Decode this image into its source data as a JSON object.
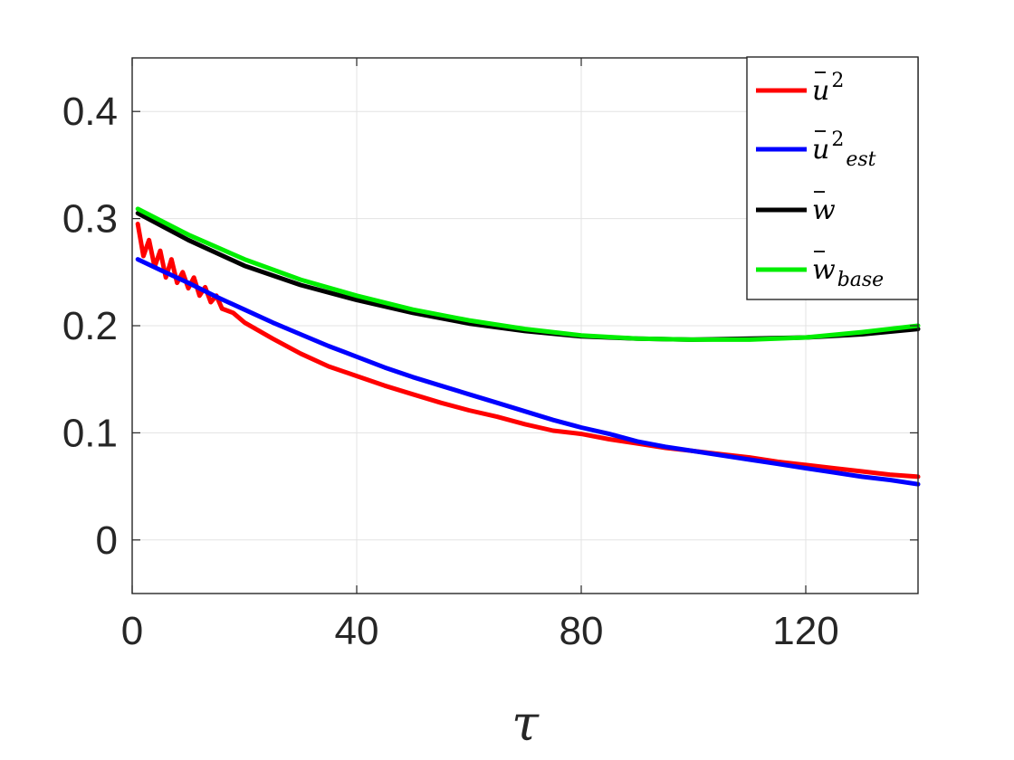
{
  "chart_data": {
    "type": "line",
    "xlabel": "τ",
    "ylabel": "",
    "title": "",
    "xlim": [
      0,
      140
    ],
    "ylim": [
      -0.05,
      0.45
    ],
    "xticks": [
      0,
      40,
      80,
      120
    ],
    "yticks": [
      0,
      0.1,
      0.2,
      0.3,
      0.4
    ],
    "xtick_labels": [
      "0",
      "40",
      "80",
      "120"
    ],
    "ytick_labels": [
      "0",
      "0.1",
      "0.2",
      "0.3",
      "0.4"
    ],
    "grid": true,
    "legend_position": "top-right",
    "series": [
      {
        "name": "u²",
        "legend_main": "u",
        "legend_sup": "2",
        "legend_sub": "",
        "legend_bar": true,
        "color": "#ff0000",
        "x": [
          1,
          2,
          3,
          4,
          5,
          6,
          7,
          8,
          9,
          10,
          11,
          12,
          13,
          14,
          15,
          16,
          18,
          20,
          25,
          30,
          35,
          40,
          45,
          50,
          55,
          60,
          65,
          70,
          75,
          80,
          85,
          90,
          95,
          100,
          105,
          110,
          115,
          120,
          125,
          130,
          135,
          140
        ],
        "y": [
          0.295,
          0.265,
          0.28,
          0.255,
          0.27,
          0.245,
          0.262,
          0.24,
          0.25,
          0.235,
          0.245,
          0.228,
          0.236,
          0.222,
          0.228,
          0.216,
          0.212,
          0.203,
          0.188,
          0.174,
          0.162,
          0.153,
          0.144,
          0.136,
          0.128,
          0.121,
          0.115,
          0.108,
          0.102,
          0.099,
          0.094,
          0.09,
          0.086,
          0.083,
          0.08,
          0.077,
          0.073,
          0.07,
          0.067,
          0.064,
          0.061,
          0.059
        ]
      },
      {
        "name": "u²est",
        "legend_main": "u",
        "legend_sup": "2",
        "legend_sub": "est",
        "legend_bar": true,
        "color": "#0000ff",
        "x": [
          1,
          5,
          10,
          15,
          20,
          25,
          30,
          35,
          40,
          45,
          50,
          55,
          60,
          65,
          70,
          75,
          80,
          85,
          90,
          95,
          100,
          105,
          110,
          115,
          120,
          125,
          130,
          135,
          140
        ],
        "y": [
          0.262,
          0.252,
          0.24,
          0.227,
          0.215,
          0.203,
          0.192,
          0.181,
          0.171,
          0.161,
          0.152,
          0.144,
          0.136,
          0.128,
          0.12,
          0.112,
          0.105,
          0.099,
          0.092,
          0.087,
          0.083,
          0.079,
          0.075,
          0.071,
          0.067,
          0.063,
          0.059,
          0.056,
          0.052
        ]
      },
      {
        "name": "w",
        "legend_main": "w",
        "legend_sup": "",
        "legend_sub": "",
        "legend_bar": true,
        "color": "#000000",
        "x": [
          1,
          10,
          20,
          30,
          40,
          50,
          60,
          70,
          80,
          90,
          100,
          110,
          120,
          130,
          140
        ],
        "y": [
          0.305,
          0.28,
          0.256,
          0.238,
          0.224,
          0.212,
          0.202,
          0.195,
          0.19,
          0.188,
          0.187,
          0.188,
          0.189,
          0.192,
          0.197
        ]
      },
      {
        "name": "wbase",
        "legend_main": "w",
        "legend_sup": "",
        "legend_sub": "base",
        "legend_bar": true,
        "color": "#00ee00",
        "x": [
          1,
          10,
          20,
          30,
          40,
          50,
          60,
          70,
          80,
          90,
          100,
          110,
          120,
          130,
          140
        ],
        "y": [
          0.309,
          0.285,
          0.262,
          0.243,
          0.228,
          0.215,
          0.205,
          0.197,
          0.191,
          0.188,
          0.187,
          0.187,
          0.189,
          0.194,
          0.2
        ]
      }
    ]
  }
}
